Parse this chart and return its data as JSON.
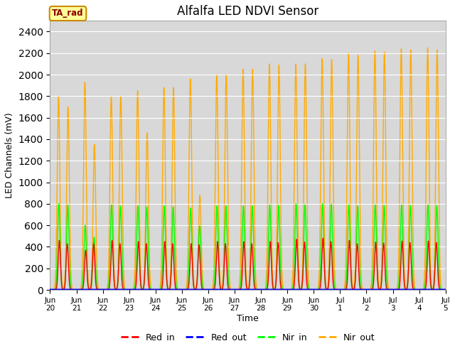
{
  "title": "Alfalfa LED NDVI Sensor",
  "xlabel": "Time",
  "ylabel": "LED Channels (mV)",
  "ylim": [
    0,
    2500
  ],
  "xlim": [
    0,
    15
  ],
  "annotation_text": "TA_rad",
  "plot_bg_color": "#d8d8d8",
  "fig_bg_color": "#ffffff",
  "x_tick_labels": [
    "Jun\n20",
    "Jun\n21",
    "Jun\n22",
    "Jun\n23",
    "Jun\n24",
    "Jun\n25",
    "Jun\n26",
    "Jun\n27",
    "Jun\n28",
    "Jun\n29",
    "Jun\n30",
    "Jul\n1",
    "Jul\n2",
    "Jul\n3",
    "Jul\n4",
    "Jul\n5"
  ],
  "legend": [
    {
      "label": "Red_in",
      "color": "#ff0000"
    },
    {
      "label": "Red_out",
      "color": "#0000ff"
    },
    {
      "label": "Nir_in",
      "color": "#00ff00"
    },
    {
      "label": "Nir_out",
      "color": "#ffaa00"
    }
  ],
  "nir_out_peaks": [
    1800,
    1930,
    1800,
    1850,
    1880,
    1960,
    2000,
    2050,
    2100,
    2100,
    2150,
    2200,
    2220,
    2240,
    2250
  ],
  "nir_out_peak2": [
    1700,
    1350,
    1800,
    1460,
    1880,
    880,
    2000,
    2050,
    2090,
    2100,
    2140,
    2180,
    2210,
    2230,
    2230
  ],
  "red_in_peaks": [
    460,
    370,
    460,
    450,
    450,
    430,
    450,
    450,
    450,
    470,
    480,
    460,
    445,
    455,
    455
  ],
  "red_in_peak2": [
    430,
    430,
    430,
    430,
    430,
    420,
    430,
    430,
    440,
    445,
    450,
    430,
    435,
    440,
    440
  ],
  "nir_in_peaks": [
    800,
    600,
    790,
    780,
    780,
    760,
    780,
    780,
    790,
    800,
    800,
    790,
    790,
    790,
    790
  ],
  "nir_in_peak2": [
    790,
    490,
    780,
    770,
    770,
    595,
    780,
    780,
    785,
    790,
    795,
    780,
    785,
    785,
    785
  ]
}
